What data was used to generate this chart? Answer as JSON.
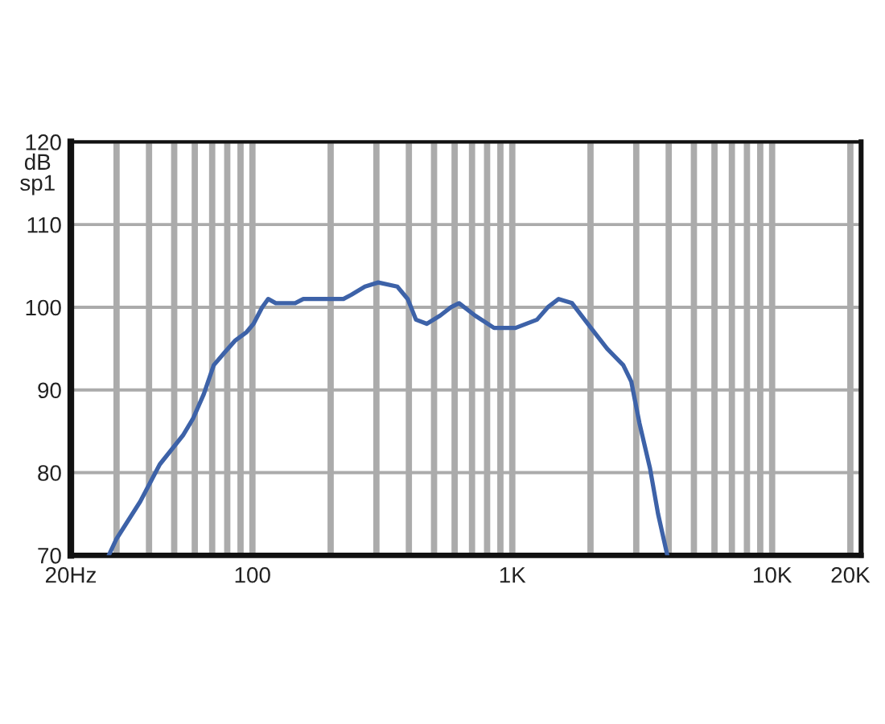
{
  "chart_data": {
    "type": "line",
    "ylabel": "dB\nsp1",
    "x": [
      28,
      30,
      37,
      44,
      54,
      59,
      65,
      71,
      78,
      86,
      95,
      101,
      109,
      115,
      123,
      146,
      157,
      185,
      224,
      240,
      271,
      305,
      361,
      396,
      426,
      469,
      528,
      581,
      624,
      719,
      851,
      1029,
      1245,
      1370,
      1508,
      1698,
      2008,
      2317,
      2673,
      2871,
      3085,
      3390,
      3640,
      3950
    ],
    "series": [
      {
        "color": "#3d62a8",
        "values": [
          70,
          72,
          76.5,
          81,
          84.5,
          86.5,
          89.5,
          93,
          94.5,
          96,
          97,
          98,
          100,
          101,
          100.5,
          100.5,
          101,
          101,
          101,
          101.5,
          102.5,
          103,
          102.5,
          101,
          98.5,
          98,
          99,
          100,
          100.5,
          99,
          97.5,
          97.5,
          98.5,
          100,
          101,
          100.5,
          97.5,
          95,
          93,
          91,
          86,
          80.5,
          75,
          70
        ]
      }
    ],
    "log": "x",
    "xlim": [
      20,
      22000
    ],
    "xticks": [
      {
        "value": 20,
        "label": "20Hz"
      },
      100,
      {
        "value": 1000,
        "label": "1K"
      },
      {
        "value": 10000,
        "label": "10K"
      },
      {
        "value": 20000,
        "label": "20K"
      }
    ],
    "ylim": [
      70,
      120
    ],
    "yticks": [
      70,
      80,
      90,
      100,
      110,
      120
    ],
    "grid": true
  }
}
